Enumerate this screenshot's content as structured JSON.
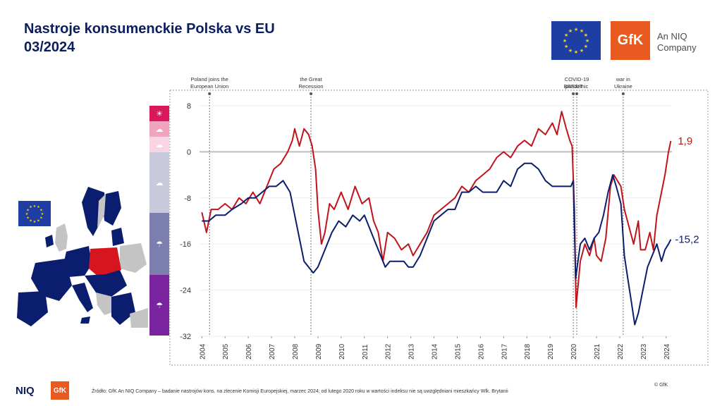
{
  "header": {
    "title_line1": "Nastroje konsumenckie Polska vs EU",
    "title_line2": "03/2024"
  },
  "logos": {
    "gfk": "GfK",
    "niq_company_line1": "An NIQ",
    "niq_company_line2": "Company",
    "footer_niq": "NIQ",
    "footer_gfk": "GfK"
  },
  "footer": {
    "source": "Źródło: GfK An NIQ Company – badanie nastrojów kons. na zlecenie Komisji Europejskiej, marzec 2024; od lutego 2020 roku w wartości indeksu nie są uwzględniani mieszkańcy Wlk. Brytanii",
    "copyright": "© GfK"
  },
  "colors": {
    "poland": "#c0141c",
    "eu": "#0b1d6e",
    "flag_blue": "#1e3ea4",
    "flag_star": "#ffd400",
    "gfk_orange": "#e85a1f",
    "map_eu": "#0b1d6e",
    "map_poland": "#d7151f",
    "map_other": "#c4c4c4",
    "legend_colors": [
      "#d8185b",
      "#f2a3c0",
      "#f9d4e2",
      "#c9c9dc",
      "#7c7fae",
      "#7a24a0"
    ]
  },
  "legend_icons": [
    "sun-icon",
    "partly-cloudy-icon",
    "cloud-icon",
    "cloud-icon",
    "rain-icon",
    "storm-icon"
  ],
  "chart_data": {
    "type": "line",
    "x_ticks": [
      "2004",
      "2005",
      "2006",
      "2007",
      "2008",
      "2009",
      "2010",
      "2011",
      "2012",
      "2013",
      "2014",
      "2015",
      "2016",
      "2017",
      "2018",
      "2019",
      "2020",
      "2021",
      "2022",
      "2023",
      "2024"
    ],
    "y_ticks": [
      8,
      0,
      -8,
      -16,
      -24,
      -32
    ],
    "ylim": [
      -32,
      9
    ],
    "xlim": [
      2003.9,
      2024.25
    ],
    "zero_line": true,
    "events": [
      {
        "x": 2004.33,
        "line1": "Poland joins the",
        "line2": "European Union"
      },
      {
        "x": 2008.7,
        "line1": "the Great",
        "line2": "Recession"
      },
      {
        "x": 2020.0,
        "line1": "",
        "line2": "BREXIT"
      },
      {
        "x": 2020.15,
        "line1": "COVID-19",
        "line2": "pandemic"
      },
      {
        "x": 2022.15,
        "line1": "war in",
        "line2": "Ukraine"
      }
    ],
    "series": [
      {
        "label": "1,9",
        "color": "#c0141c",
        "points": [
          [
            2004.0,
            -10.5
          ],
          [
            2004.2,
            -14
          ],
          [
            2004.4,
            -10
          ],
          [
            2004.7,
            -10
          ],
          [
            2005.0,
            -9
          ],
          [
            2005.3,
            -10
          ],
          [
            2005.6,
            -8
          ],
          [
            2005.9,
            -9
          ],
          [
            2006.2,
            -7
          ],
          [
            2006.5,
            -9
          ],
          [
            2006.8,
            -6
          ],
          [
            2007.1,
            -3
          ],
          [
            2007.4,
            -2
          ],
          [
            2007.7,
            0
          ],
          [
            2007.9,
            2
          ],
          [
            2008.0,
            4
          ],
          [
            2008.2,
            1
          ],
          [
            2008.4,
            4
          ],
          [
            2008.6,
            3
          ],
          [
            2008.75,
            1
          ],
          [
            2008.9,
            -3
          ],
          [
            2009.0,
            -10
          ],
          [
            2009.15,
            -16
          ],
          [
            2009.3,
            -14
          ],
          [
            2009.5,
            -9
          ],
          [
            2009.7,
            -10
          ],
          [
            2010.0,
            -7
          ],
          [
            2010.3,
            -10
          ],
          [
            2010.6,
            -6
          ],
          [
            2010.9,
            -9
          ],
          [
            2011.2,
            -8
          ],
          [
            2011.4,
            -12
          ],
          [
            2011.6,
            -14
          ],
          [
            2011.8,
            -19
          ],
          [
            2012.0,
            -14
          ],
          [
            2012.3,
            -15
          ],
          [
            2012.6,
            -17
          ],
          [
            2012.9,
            -16
          ],
          [
            2013.1,
            -18
          ],
          [
            2013.4,
            -16
          ],
          [
            2013.7,
            -14
          ],
          [
            2014.0,
            -11
          ],
          [
            2014.3,
            -10
          ],
          [
            2014.6,
            -9
          ],
          [
            2014.9,
            -8
          ],
          [
            2015.2,
            -6
          ],
          [
            2015.5,
            -7
          ],
          [
            2015.8,
            -5
          ],
          [
            2016.1,
            -4
          ],
          [
            2016.4,
            -3
          ],
          [
            2016.7,
            -1
          ],
          [
            2017.0,
            0
          ],
          [
            2017.3,
            -1
          ],
          [
            2017.6,
            1
          ],
          [
            2017.9,
            2
          ],
          [
            2018.2,
            1
          ],
          [
            2018.5,
            4
          ],
          [
            2018.8,
            3
          ],
          [
            2019.1,
            5
          ],
          [
            2019.3,
            3
          ],
          [
            2019.5,
            7
          ],
          [
            2019.7,
            4
          ],
          [
            2019.85,
            2
          ],
          [
            2019.95,
            1
          ],
          [
            2020.05,
            -10
          ],
          [
            2020.12,
            -27
          ],
          [
            2020.3,
            -19
          ],
          [
            2020.5,
            -16
          ],
          [
            2020.7,
            -18
          ],
          [
            2020.9,
            -15
          ],
          [
            2021.0,
            -18
          ],
          [
            2021.2,
            -19
          ],
          [
            2021.4,
            -15
          ],
          [
            2021.6,
            -6
          ],
          [
            2021.75,
            -4
          ],
          [
            2021.9,
            -5
          ],
          [
            2022.05,
            -6
          ],
          [
            2022.2,
            -10
          ],
          [
            2022.4,
            -13
          ],
          [
            2022.6,
            -16
          ],
          [
            2022.8,
            -12
          ],
          [
            2022.9,
            -17
          ],
          [
            2023.1,
            -17
          ],
          [
            2023.3,
            -14
          ],
          [
            2023.45,
            -17
          ],
          [
            2023.6,
            -11
          ],
          [
            2023.8,
            -7
          ],
          [
            2023.95,
            -4
          ],
          [
            2024.1,
            0
          ],
          [
            2024.2,
            1.9
          ]
        ]
      },
      {
        "label": "-15,2",
        "color": "#0b1d6e",
        "points": [
          [
            2004.0,
            -12
          ],
          [
            2004.3,
            -12
          ],
          [
            2004.6,
            -11
          ],
          [
            2005.0,
            -11
          ],
          [
            2005.3,
            -10
          ],
          [
            2005.7,
            -9
          ],
          [
            2006.0,
            -8
          ],
          [
            2006.3,
            -8
          ],
          [
            2006.6,
            -7
          ],
          [
            2006.9,
            -6
          ],
          [
            2007.2,
            -6
          ],
          [
            2007.5,
            -5
          ],
          [
            2007.8,
            -7
          ],
          [
            2008.0,
            -11
          ],
          [
            2008.2,
            -15
          ],
          [
            2008.4,
            -19
          ],
          [
            2008.6,
            -20
          ],
          [
            2008.8,
            -21
          ],
          [
            2009.0,
            -20
          ],
          [
            2009.3,
            -17
          ],
          [
            2009.6,
            -14
          ],
          [
            2009.9,
            -12
          ],
          [
            2010.2,
            -13
          ],
          [
            2010.5,
            -11
          ],
          [
            2010.8,
            -12
          ],
          [
            2011.0,
            -11
          ],
          [
            2011.3,
            -14
          ],
          [
            2011.6,
            -17
          ],
          [
            2011.9,
            -20
          ],
          [
            2012.1,
            -19
          ],
          [
            2012.4,
            -19
          ],
          [
            2012.7,
            -19
          ],
          [
            2012.9,
            -20
          ],
          [
            2013.1,
            -20
          ],
          [
            2013.4,
            -18
          ],
          [
            2013.7,
            -15
          ],
          [
            2014.0,
            -12
          ],
          [
            2014.3,
            -11
          ],
          [
            2014.6,
            -10
          ],
          [
            2014.9,
            -10
          ],
          [
            2015.2,
            -7
          ],
          [
            2015.5,
            -7
          ],
          [
            2015.8,
            -6
          ],
          [
            2016.1,
            -7
          ],
          [
            2016.4,
            -7
          ],
          [
            2016.7,
            -7
          ],
          [
            2017.0,
            -5
          ],
          [
            2017.3,
            -6
          ],
          [
            2017.6,
            -3
          ],
          [
            2017.9,
            -2
          ],
          [
            2018.2,
            -2
          ],
          [
            2018.5,
            -3
          ],
          [
            2018.8,
            -5
          ],
          [
            2019.1,
            -6
          ],
          [
            2019.4,
            -6
          ],
          [
            2019.7,
            -6
          ],
          [
            2019.9,
            -6
          ],
          [
            2020.0,
            -5
          ],
          [
            2020.1,
            -22
          ],
          [
            2020.3,
            -16
          ],
          [
            2020.5,
            -15
          ],
          [
            2020.7,
            -17
          ],
          [
            2020.9,
            -15
          ],
          [
            2021.1,
            -14
          ],
          [
            2021.3,
            -11
          ],
          [
            2021.5,
            -7
          ],
          [
            2021.7,
            -4
          ],
          [
            2021.85,
            -6
          ],
          [
            2022.05,
            -9
          ],
          [
            2022.2,
            -18
          ],
          [
            2022.35,
            -22
          ],
          [
            2022.5,
            -26
          ],
          [
            2022.65,
            -30
          ],
          [
            2022.8,
            -28
          ],
          [
            2023.0,
            -24
          ],
          [
            2023.2,
            -20
          ],
          [
            2023.4,
            -18
          ],
          [
            2023.6,
            -16
          ],
          [
            2023.8,
            -19
          ],
          [
            2023.95,
            -17
          ],
          [
            2024.1,
            -16
          ],
          [
            2024.2,
            -15.2
          ]
        ]
      }
    ]
  }
}
